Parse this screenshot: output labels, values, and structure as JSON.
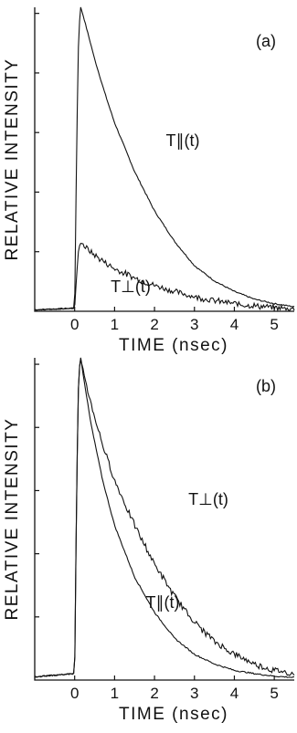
{
  "chart_data": [
    {
      "type": "line",
      "panel_label": "(a)",
      "ylabel": "RELATIVE INTENSITY",
      "xlabel": "TIME (nsec)",
      "xticks": [
        "0",
        "1",
        "2",
        "3",
        "4",
        "5"
      ],
      "xlim": [
        -1.0,
        5.5
      ],
      "ylim": [
        0,
        1
      ],
      "series": [
        {
          "name": "T∥(t)",
          "x": [
            -1.0,
            0.0,
            0.05,
            0.1,
            0.15,
            0.2,
            0.3,
            0.5,
            0.75,
            1.0,
            1.5,
            2.0,
            2.5,
            3.0,
            3.5,
            4.0,
            4.5,
            5.0,
            5.5
          ],
          "y": [
            0.005,
            0.01,
            0.55,
            0.92,
            1.0,
            0.98,
            0.93,
            0.83,
            0.72,
            0.62,
            0.46,
            0.33,
            0.23,
            0.15,
            0.1,
            0.065,
            0.04,
            0.025,
            0.015
          ]
        },
        {
          "name": "T⊥(t)",
          "x": [
            -1.0,
            0.0,
            0.05,
            0.1,
            0.15,
            0.2,
            0.4,
            0.6,
            1.0,
            1.5,
            2.0,
            2.5,
            3.0,
            3.5,
            4.0,
            4.5,
            5.0,
            5.5
          ],
          "y": [
            0.005,
            0.01,
            0.12,
            0.21,
            0.225,
            0.22,
            0.195,
            0.175,
            0.14,
            0.11,
            0.085,
            0.065,
            0.048,
            0.035,
            0.025,
            0.018,
            0.012,
            0.008
          ]
        }
      ]
    },
    {
      "type": "line",
      "panel_label": "(b)",
      "ylabel": "RELATIVE INTENSITY",
      "xlabel": "TIME (nsec)",
      "xticks": [
        "0",
        "1",
        "2",
        "3",
        "4",
        "5"
      ],
      "xlim": [
        -1.0,
        5.5
      ],
      "ylim": [
        0,
        1
      ],
      "series": [
        {
          "name": "T⊥(t)",
          "x": [
            -1.0,
            0.0,
            0.05,
            0.1,
            0.15,
            0.2,
            0.4,
            0.7,
            1.0,
            1.5,
            2.0,
            2.5,
            3.0,
            3.5,
            4.0,
            4.5,
            5.0,
            5.5
          ],
          "y": [
            0.01,
            0.02,
            0.6,
            0.95,
            1.0,
            0.97,
            0.86,
            0.73,
            0.62,
            0.48,
            0.36,
            0.26,
            0.18,
            0.12,
            0.08,
            0.05,
            0.03,
            0.02
          ]
        },
        {
          "name": "T∥(t)",
          "x": [
            -1.0,
            0.0,
            0.05,
            0.1,
            0.15,
            0.2,
            0.4,
            0.7,
            1.0,
            1.5,
            2.0,
            2.5,
            3.0,
            3.5,
            4.0,
            4.5,
            5.0,
            5.5
          ],
          "y": [
            0.01,
            0.02,
            0.6,
            0.95,
            1.0,
            0.96,
            0.8,
            0.62,
            0.48,
            0.32,
            0.21,
            0.13,
            0.08,
            0.05,
            0.03,
            0.02,
            0.012,
            0.008
          ]
        }
      ]
    }
  ]
}
